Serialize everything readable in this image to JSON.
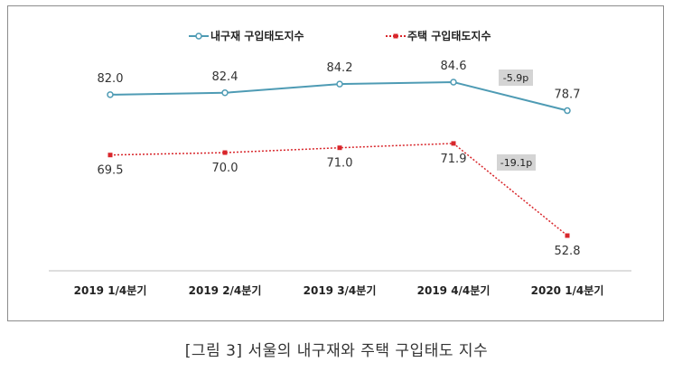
{
  "chart_data": {
    "type": "line",
    "categories": [
      "2019 1/4분기",
      "2019 2/4분기",
      "2019 3/4분기",
      "2019 4/4분기",
      "2020 1/4분기"
    ],
    "series": [
      {
        "name": "내구재 구입태도지수",
        "values": [
          82.0,
          82.4,
          84.2,
          84.6,
          78.7
        ],
        "labels": [
          "82.0",
          "82.4",
          "84.2",
          "84.6",
          "78.7"
        ],
        "color": "#4e9bb4",
        "style": "solid",
        "marker": "circle"
      },
      {
        "name": "주택 구입태도지수",
        "values": [
          69.5,
          70.0,
          71.0,
          71.9,
          52.8
        ],
        "labels": [
          "69.5",
          "70.0",
          "71.0",
          "71.9",
          "52.8"
        ],
        "color": "#d8262b",
        "style": "dotted",
        "marker": "square"
      }
    ],
    "annotations": [
      {
        "text": "-5.9p",
        "series": 0,
        "between": [
          3,
          4
        ]
      },
      {
        "text": "-19.1p",
        "series": 1,
        "between": [
          3,
          4
        ]
      }
    ],
    "legend": "top-center",
    "grid": false
  },
  "caption": "[그림 3] 서울의 내구재와 주택 구입태도 지수"
}
